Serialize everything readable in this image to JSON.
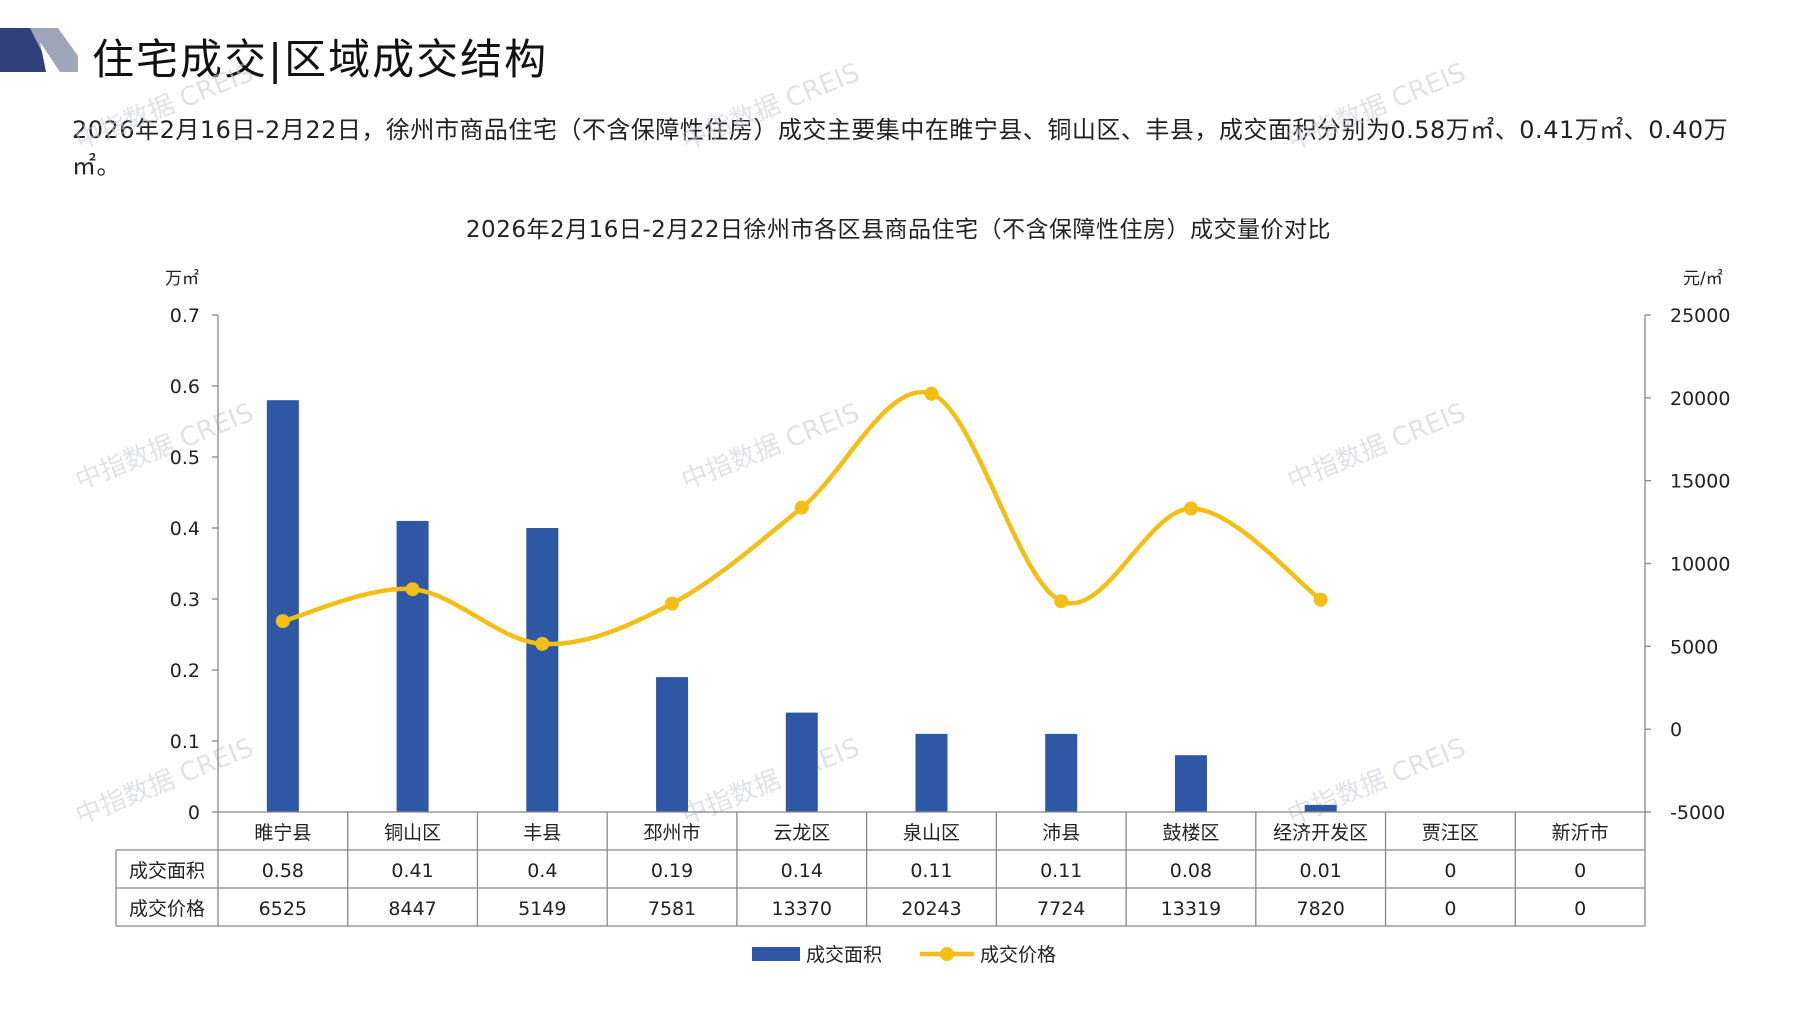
{
  "header": {
    "title": "住宅成交|区域成交结构"
  },
  "description": "2026年2月16日-2月22日，徐州市商品住宅（不含保障性住房）成交主要集中在睢宁县、铜山区、丰县，成交面积分别为0.58万㎡、0.41万㎡、0.40万㎡。",
  "watermark": "中指数据 CREIS",
  "colors": {
    "bar": "#2E58A6",
    "line": "#F5BE14",
    "logo_dark": "#2E3F7A",
    "logo_light": "#9FA6B8"
  },
  "chart_data": {
    "type": "bar",
    "title": "2026年2月16日-2月22日徐州市各区县商品住宅（不含保障性住房）成交量价对比",
    "categories": [
      "睢宁县",
      "铜山区",
      "丰县",
      "邳州市",
      "云龙区",
      "泉山区",
      "沛县",
      "鼓楼区",
      "经济开发区",
      "贾汪区",
      "新沂市"
    ],
    "y_left": {
      "unit": "万㎡",
      "ticks": [
        "0",
        "0.1",
        "0.2",
        "0.3",
        "0.4",
        "0.5",
        "0.6",
        "0.7"
      ],
      "ylim": [
        0,
        0.7
      ]
    },
    "y_right": {
      "unit": "元/㎡",
      "ticks": [
        "-5000",
        "0",
        "5000",
        "10000",
        "15000",
        "20000",
        "25000"
      ],
      "ylim": [
        -5000,
        25000
      ]
    },
    "series": [
      {
        "name": "成交面积",
        "type": "bar",
        "axis": "left",
        "values": [
          0.58,
          0.41,
          0.4,
          0.19,
          0.14,
          0.11,
          0.11,
          0.08,
          0.01,
          0,
          0
        ],
        "labels": [
          "0.58",
          "0.41",
          "0.4",
          "0.19",
          "0.14",
          "0.11",
          "0.11",
          "0.08",
          "0.01",
          "0",
          "0"
        ]
      },
      {
        "name": "成交价格",
        "type": "line",
        "axis": "right",
        "smooth": true,
        "values": [
          6525,
          8447,
          5149,
          7581,
          13370,
          20243,
          7724,
          13319,
          7820,
          0,
          0
        ],
        "labels": [
          "6525",
          "8447",
          "5149",
          "7581",
          "13370",
          "20243",
          "7724",
          "13319",
          "7820",
          "0",
          "0"
        ],
        "plotted_points": 9
      }
    ],
    "legend": "bottom-center",
    "grid": false,
    "table": true
  }
}
